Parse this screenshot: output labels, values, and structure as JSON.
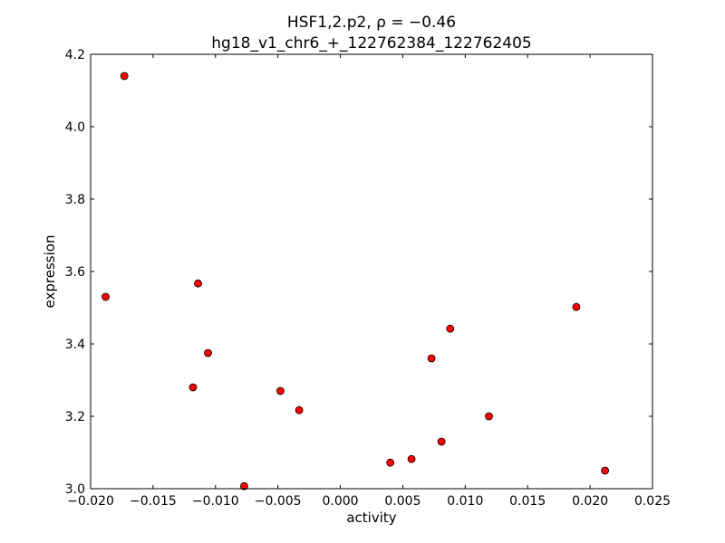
{
  "chart_data": {
    "type": "scatter",
    "title_line1": "HSF1,2.p2, ρ = −0.46",
    "title_line2": "hg18_v1_chr6_+_122762384_122762405",
    "xlabel": "activity",
    "ylabel": "expression",
    "xlim": [
      -0.02,
      0.025
    ],
    "ylim": [
      3.0,
      4.2
    ],
    "xticks": [
      -0.02,
      -0.015,
      -0.01,
      -0.005,
      0.0,
      0.005,
      0.01,
      0.015,
      0.02,
      0.025
    ],
    "xtick_labels": [
      "−0.020",
      "−0.015",
      "−0.010",
      "−0.005",
      "0.000",
      "0.005",
      "0.010",
      "0.015",
      "0.020",
      "0.025"
    ],
    "yticks": [
      3.0,
      3.2,
      3.4,
      3.6,
      3.8,
      4.0,
      4.2
    ],
    "ytick_labels": [
      "3.0",
      "3.2",
      "3.4",
      "3.6",
      "3.8",
      "4.0",
      "4.2"
    ],
    "grid": false,
    "marker_color": "#ff0000",
    "points": [
      {
        "x": -0.0173,
        "y": 4.14
      },
      {
        "x": -0.0188,
        "y": 3.53
      },
      {
        "x": -0.0114,
        "y": 3.567
      },
      {
        "x": -0.0106,
        "y": 3.375
      },
      {
        "x": -0.0118,
        "y": 3.28
      },
      {
        "x": -0.0077,
        "y": 3.007
      },
      {
        "x": -0.0048,
        "y": 3.27
      },
      {
        "x": -0.0033,
        "y": 3.217
      },
      {
        "x": 0.004,
        "y": 3.072
      },
      {
        "x": 0.0057,
        "y": 3.082
      },
      {
        "x": 0.0073,
        "y": 3.36
      },
      {
        "x": 0.0081,
        "y": 3.13
      },
      {
        "x": 0.0088,
        "y": 3.442
      },
      {
        "x": 0.0119,
        "y": 3.2
      },
      {
        "x": 0.0189,
        "y": 3.502
      },
      {
        "x": 0.0212,
        "y": 3.05
      }
    ]
  }
}
